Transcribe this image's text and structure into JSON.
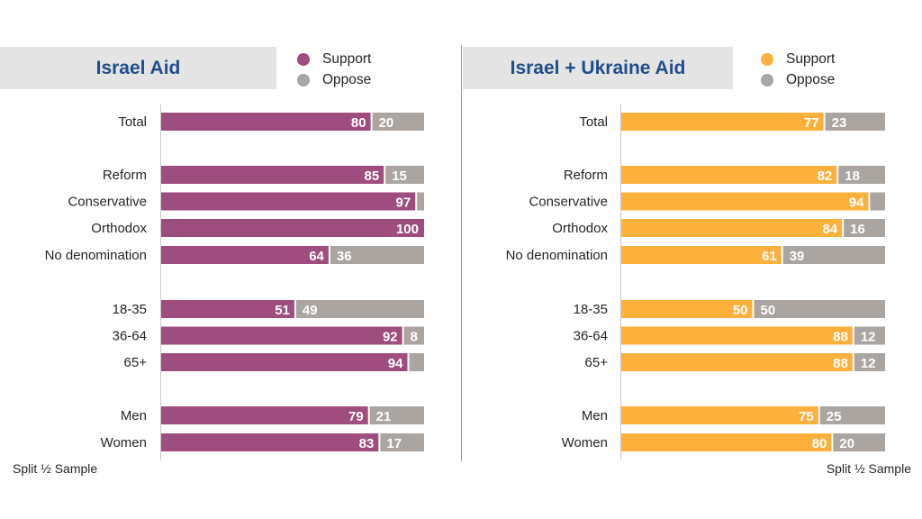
{
  "colors": {
    "left_support": "#9e4d7e",
    "right_support": "#fdb13c",
    "oppose": "#aaa5a1",
    "title_text": "#1f4e8c",
    "title_bg": "#e4e4e4"
  },
  "legend": {
    "support_label": "Support",
    "oppose_label": "Oppose"
  },
  "footnote_left": "Split ½ Sample",
  "footnote_right": "Split ½ Sample",
  "chart_data": [
    {
      "type": "bar",
      "stacked": true,
      "orientation": "horizontal",
      "title": "Israel Aid",
      "categories": [
        "Total",
        "Reform",
        "Conservative",
        "Orthodox",
        "No denomination",
        "18-35",
        "36-64",
        "65+",
        "Men",
        "Women"
      ],
      "series": [
        {
          "name": "Support",
          "values": [
            80,
            85,
            97,
            100,
            64,
            51,
            92,
            94,
            79,
            83
          ]
        },
        {
          "name": "Oppose",
          "values": [
            20,
            15,
            3,
            0,
            36,
            49,
            8,
            6,
            21,
            17
          ]
        }
      ],
      "data_labels": {
        "Support": [
          "80",
          "85",
          "97",
          "100",
          "64",
          "51",
          "92",
          "94",
          "79",
          "83"
        ],
        "Oppose": [
          "20",
          "15",
          "",
          "",
          "36",
          "49",
          "8",
          "",
          "21",
          "17"
        ]
      },
      "xlim": [
        0,
        100
      ],
      "grid": false,
      "legend_position": "top-right"
    },
    {
      "type": "bar",
      "stacked": true,
      "orientation": "horizontal",
      "title": "Israel + Ukraine Aid",
      "categories": [
        "Total",
        "Reform",
        "Conservative",
        "Orthodox",
        "No denomination",
        "18-35",
        "36-64",
        "65+",
        "Men",
        "Women"
      ],
      "series": [
        {
          "name": "Support",
          "values": [
            77,
            82,
            94,
            84,
            61,
            50,
            88,
            88,
            75,
            80
          ]
        },
        {
          "name": "Oppose",
          "values": [
            23,
            18,
            6,
            16,
            39,
            50,
            12,
            12,
            25,
            20
          ]
        }
      ],
      "data_labels": {
        "Support": [
          "77",
          "82",
          "94",
          "84",
          "61",
          "50",
          "88",
          "88",
          "75",
          "80"
        ],
        "Oppose": [
          "23",
          "18",
          "",
          "16",
          "39",
          "50",
          "12",
          "12",
          "25",
          "20"
        ]
      },
      "xlim": [
        0,
        100
      ],
      "grid": false,
      "legend_position": "top-right"
    }
  ]
}
